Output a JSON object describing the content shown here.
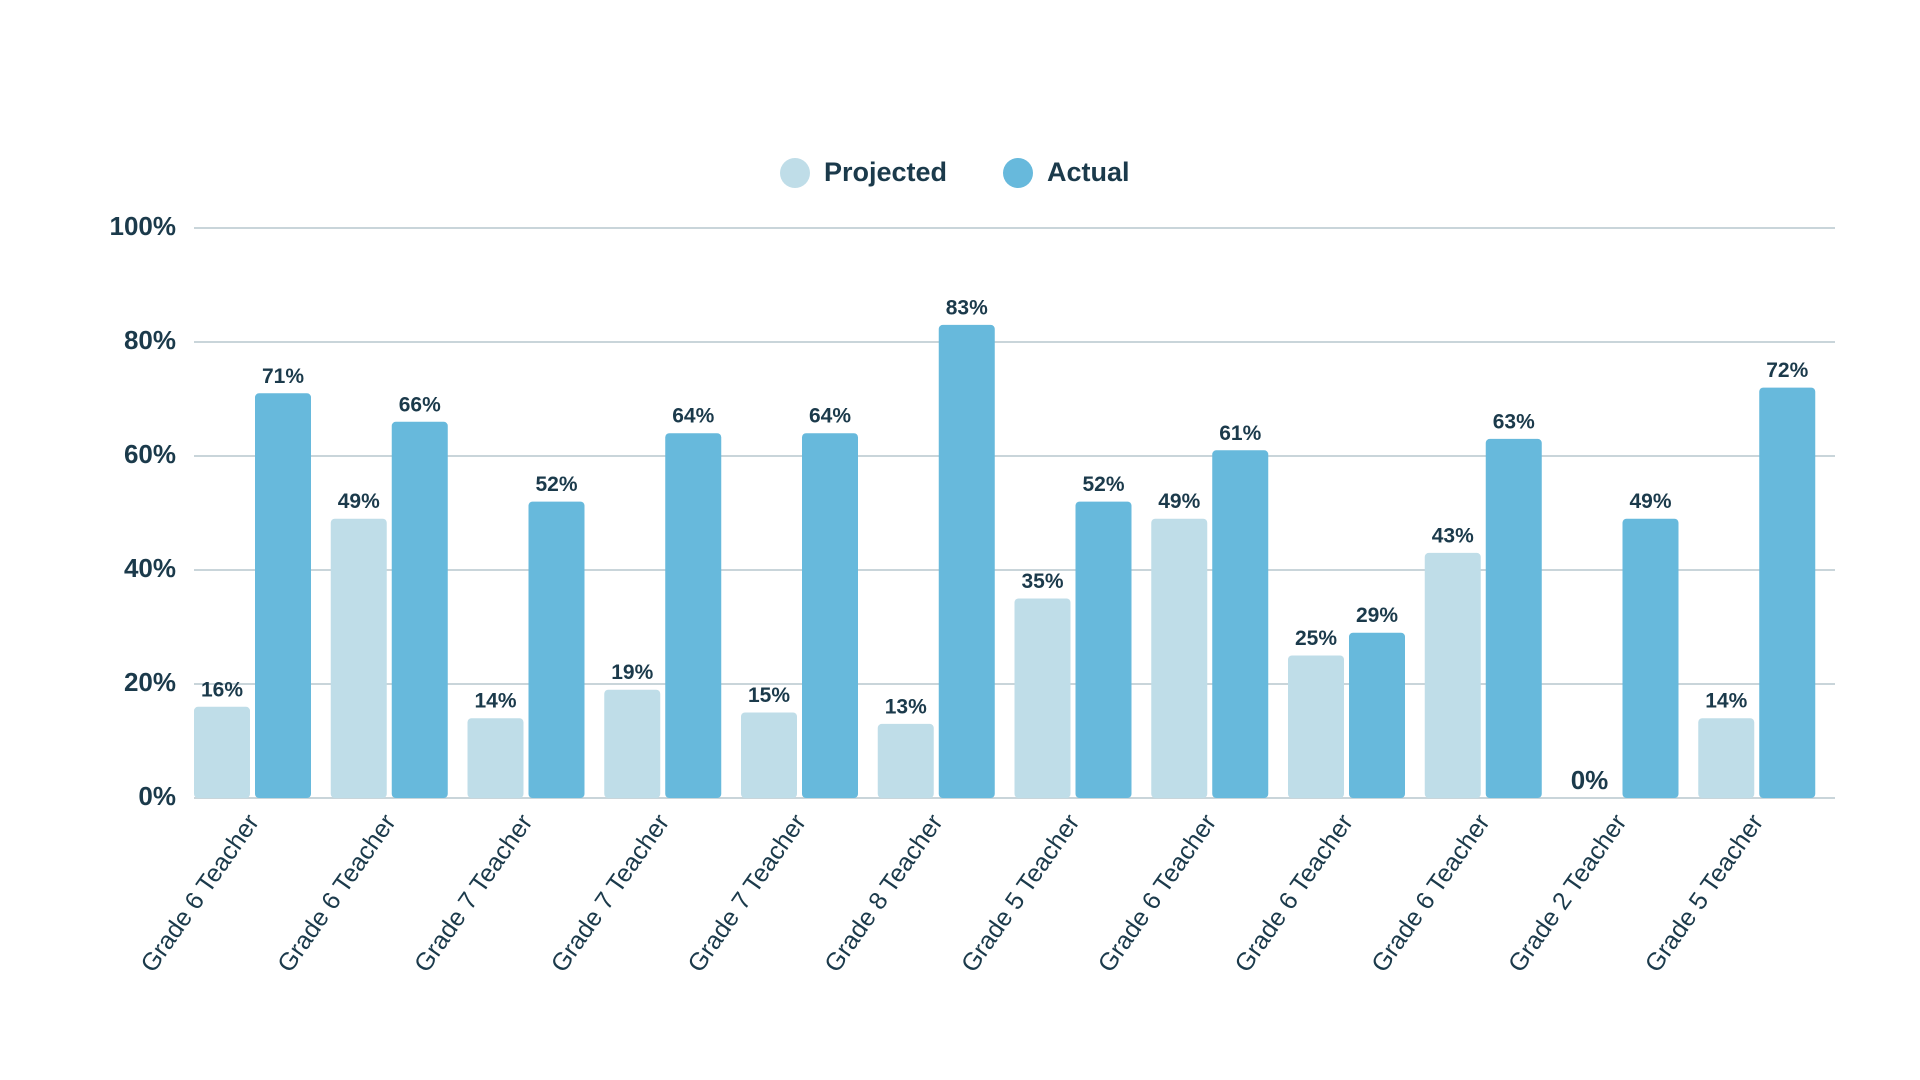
{
  "chart_data": {
    "type": "grouped-bar",
    "categories": [
      "Grade 6 Teacher",
      "Grade 6 Teacher",
      "Grade 7 Teacher",
      "Grade 7 Teacher",
      "Grade 7 Teacher",
      "Grade 8 Teacher",
      "Grade 5 Teacher",
      "Grade 6 Teacher",
      "Grade 6 Teacher",
      "Grade 6 Teacher",
      "Grade 2 Teacher",
      "Grade 5 Teacher"
    ],
    "series": [
      {
        "name": "Projected",
        "color": "#bfdde8",
        "values": [
          16,
          49,
          14,
          19,
          15,
          13,
          35,
          49,
          25,
          43,
          0,
          14
        ],
        "value_labels": [
          "16%",
          "49%",
          "14%",
          "19%",
          "15%",
          "13%",
          "35%",
          "49%",
          "25%",
          "43%",
          "0%",
          "14%"
        ]
      },
      {
        "name": "Actual",
        "color": "#67b9dc",
        "values": [
          71,
          66,
          52,
          64,
          64,
          83,
          52,
          61,
          29,
          63,
          49,
          72
        ],
        "value_labels": [
          "71%",
          "66%",
          "52%",
          "64%",
          "64%",
          "83%",
          "52%",
          "61%",
          "29%",
          "63%",
          "49%",
          "72%"
        ]
      }
    ],
    "ylim": [
      0,
      100
    ],
    "yticks": [
      {
        "value": 0,
        "label": "0%"
      },
      {
        "value": 20,
        "label": "20%"
      },
      {
        "value": 40,
        "label": "40%"
      },
      {
        "value": 60,
        "label": "60%"
      },
      {
        "value": 80,
        "label": "80%"
      },
      {
        "value": 100,
        "label": "100%"
      }
    ],
    "grid": true,
    "legend": "top"
  }
}
